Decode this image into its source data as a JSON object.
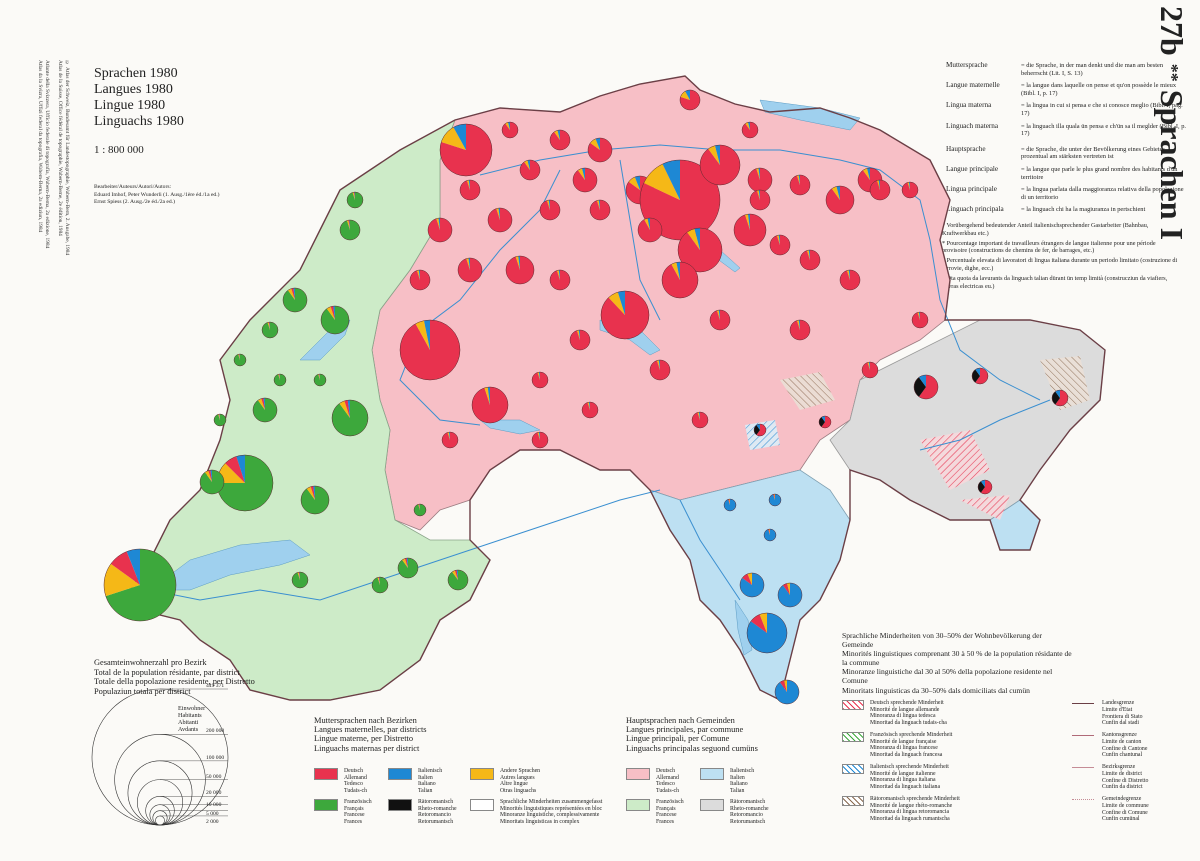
{
  "map_title": {
    "number": "27b",
    "stars": "**",
    "name": "Sprachen I"
  },
  "titles": [
    "Sprachen 1980",
    "Langues 1980",
    "Lingue 1980",
    "Linguachs 1980"
  ],
  "scale": "1 : 800 000",
  "authors": {
    "heading": "Bearbeiter/Auteurs/Autori/Autors:",
    "line1": "Eduard Imhof, Peter Wunderli (1. Ausg./1ère éd./1a ed.)",
    "line2": "Ernst Spiess (2. Ausg./2e éd./2a ed.)"
  },
  "side_credits": [
    "© Atlas der Schweiz, Bundesamt für Landestopographie, Wabern-Bern, 2. Ausgabe, 1984",
    "Atlas de la Suisse, Office fédéral de topographie, Wabern-Berne, 2e édition, 1984",
    "Atlante della Svizzera, Ufficio federale di topografia, Wabern-Berna, 2a edizione, 1984",
    "Atlas da la Svizra, Uffizi federal da topografia, Wabern-Berna, 2a ediziun, 1984"
  ],
  "definitions": [
    {
      "term": "Muttersprache",
      "desc": "= die Sprache, in der man denkt und die man am besten beherrscht (Lit. I, S. 13)"
    },
    {
      "term": "Langue maternelle",
      "desc": "= la langue dans laquelle on pense et qu'on possède le mieux (Bibl. I, p. 17)"
    },
    {
      "term": "Lingua materna",
      "desc": "= la lingua in cui si pensa e che si conosce meglio (Bibl. I, pag. 17)"
    },
    {
      "term": "Linguach materna",
      "desc": "= la linguach illa quala ün pensa e ch'ün sa il meglder (Bibl. I, p. 17)"
    },
    {
      "term": "Hauptsprache",
      "desc": "= die Sprache, die unter der Bevölkerung eines Gebietes prozentual am stärksten vertreten ist"
    },
    {
      "term": "Langue principale",
      "desc": "= la langue que parle le plus grand nombre des habitants d'un territoire"
    },
    {
      "term": "Lingua principale",
      "desc": "= la lingua parlata dalla maggioranza relativa della popolazione di un territorio"
    },
    {
      "term": "Linguach principala",
      "desc": "= la linguach chi ha la magiuranza in pertschient"
    }
  ],
  "notes": [
    "* Vorübergehend bedeutender Anteil italienischsprechender Gastarbeiter (Bahnbau, Kraftwerkbau etc.)",
    "* Pourcentage important de travailleurs étrangers de langue italienne pour une période provisoire (constructions de chemins de fer, de barrages, etc.)",
    "* Percentuale elevata di lavoratori di lingua italiana durante un periodo limitato (costruzione di ferrovie, dighe, ecc.)",
    "* Ota quota da lavurants da linguach talian dürant ün temp limità (construcziun da viafiers, ouvras electricas eu.)"
  ],
  "minorities_heading": [
    "Sprachliche Minderheiten von 30–50% der Wohnbevölkerung der Gemeinde",
    "Minorités linguistiques comprenant 30 à 50 % de la population résidante de la commune",
    "Minoranze linguistiche dal 30 al 50% della popolazione residente nel Comune",
    "Minoritats linguisticas da 30–50% dals domiciliats dal cumün"
  ],
  "population_heading": [
    "Gesamteinwohnerzahl pro Bezirk",
    "Total de la population résidante, par district",
    "Totale della popolazione residente, per Distretto",
    "Populaziun totala per district"
  ],
  "population_units": [
    "Einwohner",
    "Habitants",
    "Abitanti",
    "Avdants"
  ],
  "population_scale": [
    {
      "label": "449 371",
      "value": 449371
    },
    {
      "label": "200 000",
      "value": 200000
    },
    {
      "label": "100 000",
      "value": 100000
    },
    {
      "label": "50 000",
      "value": 50000
    },
    {
      "label": "20 000",
      "value": 20000
    },
    {
      "label": "10 000",
      "value": 10000
    },
    {
      "label": "5 000",
      "value": 5000
    },
    {
      "label": "2 000",
      "value": 2000
    }
  ],
  "mother_tongue_heading": [
    "Muttersprachen nach Bezirken",
    "Langues maternelles, par districts",
    "Lingue materne, per Distretto",
    "Linguachs maternas per district"
  ],
  "mother_tongue_legend": [
    {
      "key": "deutsch",
      "color": "#e8324e",
      "labels": [
        "Deutsch",
        "Allemand",
        "Tedesco",
        "Tudais-ch"
      ]
    },
    {
      "key": "italienisch",
      "color": "#1e88d4",
      "labels": [
        "Italienisch",
        "Italien",
        "Italiano",
        "Talian"
      ]
    },
    {
      "key": "andere",
      "color": "#f5b817",
      "labels": [
        "Andere Sprachen",
        "Autres langues",
        "Altre lingue",
        "Otras linguachs"
      ]
    },
    {
      "key": "franzoesisch",
      "color": "#3da83c",
      "labels": [
        "Französisch",
        "Français",
        "Francese",
        "Frances"
      ]
    },
    {
      "key": "retoromanisch",
      "color": "#111111",
      "labels": [
        "Rätoromanisch",
        "Rheto-romanche",
        "Retoromancio",
        "Retorumantsch"
      ]
    },
    {
      "key": "komplex",
      "color": "#ffffff",
      "labels": [
        "Sprachliche Minderheiten zusammengefasst",
        "Minorités linguistiques représentées en bloc",
        "Minoranze linguistiche, complessivamente",
        "Minoritats linguisticas in complex"
      ]
    }
  ],
  "main_language_heading": [
    "Hauptsprachen nach Gemeinden",
    "Langues principales, par commune",
    "Lingue principali, per Comune",
    "Linguachs principalas seguond cumüns"
  ],
  "main_language_legend": [
    {
      "key": "deutsch",
      "color": "#f7bfc6",
      "labels": [
        "Deutsch",
        "Allemand",
        "Tedesco",
        "Tudais-ch"
      ]
    },
    {
      "key": "italienisch",
      "color": "#bde0f2",
      "labels": [
        "Italienisch",
        "Italien",
        "Italiano",
        "Talian"
      ]
    },
    {
      "key": "franzoesisch",
      "color": "#cdebc8",
      "labels": [
        "Französisch",
        "Français",
        "Francese",
        "Frances"
      ]
    },
    {
      "key": "retoromanisch",
      "color": "#dcdcdc",
      "labels": [
        "Rätoromanisch",
        "Rheto-romanche",
        "Retoromancio",
        "Retorumantsch"
      ]
    }
  ],
  "minority_legend": [
    {
      "key": "deutsch",
      "color": "#e8324e",
      "labels": [
        "Deutsch sprechende Minderheit",
        "Minorité de langue allemande",
        "Minoranza di lingua tedesca",
        "Minoritad da linguach tudais-cha"
      ]
    },
    {
      "key": "franzoesisch",
      "color": "#3da83c",
      "labels": [
        "Französisch sprechende Minderheit",
        "Minorité de langue française",
        "Minoranza di lingua francese",
        "Minoritad da linguach francesa"
      ]
    },
    {
      "key": "italienisch",
      "color": "#1e88d4",
      "labels": [
        "Italienisch sprechende Minderheit",
        "Minorité de langue italienne",
        "Minoranza di lingua italiana",
        "Minoritad da linguach italiana"
      ]
    },
    {
      "key": "retoromanisch",
      "color": "#8a6a50",
      "labels": [
        "Rätoromanisch sprechende Minderheit",
        "Minorité de langue rhéto-romanche",
        "Minoranza di lingua retoromancia",
        "Minoritad da linguach rumantscha"
      ]
    }
  ],
  "boundary_legend": [
    {
      "key": "landesgrenze",
      "labels": [
        "Landesgrenze",
        "Limite d'Etat",
        "Frontiera di Stato",
        "Cunfin dal stadi"
      ]
    },
    {
      "key": "kantonsgrenze",
      "labels": [
        "Kantonsgrenze",
        "Limite de canton",
        "Confine di Cantone",
        "Cunfin chantunal"
      ]
    },
    {
      "key": "bezirksgrenze",
      "labels": [
        "Bezirksgrenze",
        "Limite de district",
        "Confine di Distretto",
        "Cunfin da district"
      ]
    },
    {
      "key": "gemeindegrenze",
      "labels": [
        "Gemeindegrenze",
        "Limite de commune",
        "Confine di Comune",
        "Cunfin cumünal"
      ]
    }
  ]
}
